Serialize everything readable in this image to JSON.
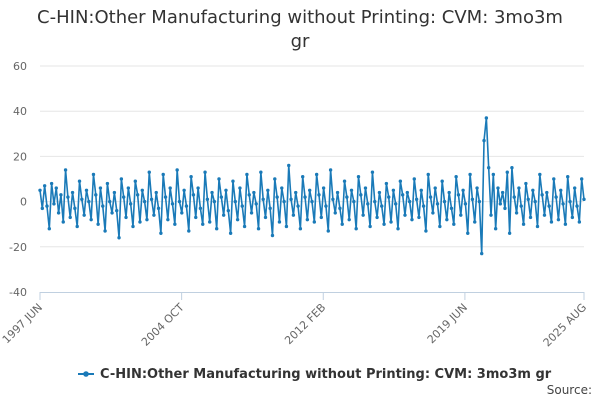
{
  "chart_data": {
    "type": "line",
    "title": "C-HIN:Other Manufacturing without Printing: CVM: 3mo3m gr",
    "xlabel": "",
    "ylabel": "",
    "ylim": [
      -40,
      60
    ],
    "yticks": [
      60,
      40,
      20,
      0,
      -20,
      -40
    ],
    "x_range": [
      "1997-06",
      "2025-08"
    ],
    "xticks": [
      {
        "label": "1997 JUN",
        "date": "1997-06"
      },
      {
        "label": "2004 OCT",
        "date": "2004-10"
      },
      {
        "label": "2012 FEB",
        "date": "2012-02"
      },
      {
        "label": "2019 JUN",
        "date": "2019-06"
      },
      {
        "label": "2025 AUG",
        "date": "2025-08"
      }
    ],
    "series": [
      {
        "name": "C-HIN:Other Manufacturing without Printing: CVM: 3mo3m gr",
        "color": "#1a7ab8",
        "values": [
          5,
          -3,
          7,
          -2,
          -12,
          8,
          -1,
          6,
          -5,
          3,
          -9,
          14,
          2,
          -7,
          4,
          -3,
          -11,
          9,
          1,
          -6,
          5,
          0,
          -8,
          12,
          3,
          -10,
          6,
          -2,
          -13,
          8,
          0,
          -5,
          4,
          -4,
          -16,
          10,
          2,
          -7,
          6,
          -1,
          -11,
          9,
          3,
          -9,
          5,
          0,
          -8,
          13,
          1,
          -6,
          4,
          -3,
          -14,
          12,
          2,
          -8,
          6,
          -1,
          -10,
          14,
          0,
          -5,
          5,
          -2,
          -13,
          11,
          3,
          -7,
          6,
          -3,
          -10,
          13,
          1,
          -9,
          4,
          0,
          -12,
          10,
          2,
          -6,
          5,
          -4,
          -14,
          9,
          0,
          -8,
          6,
          -2,
          -11,
          12,
          3,
          -5,
          4,
          -1,
          -12,
          13,
          1,
          -7,
          5,
          -3,
          -15,
          10,
          2,
          -9,
          6,
          0,
          -11,
          16,
          1,
          -6,
          4,
          -2,
          -12,
          11,
          2,
          -8,
          5,
          0,
          -9,
          12,
          3,
          -7,
          6,
          -2,
          -13,
          14,
          1,
          -5,
          4,
          -3,
          -10,
          9,
          2,
          -8,
          5,
          0,
          -12,
          11,
          3,
          -6,
          6,
          -1,
          -11,
          13,
          0,
          -7,
          4,
          -2,
          -10,
          8,
          2,
          -9,
          5,
          -1,
          -12,
          9,
          3,
          -6,
          4,
          0,
          -8,
          10,
          1,
          -7,
          5,
          -2,
          -13,
          12,
          2,
          -5,
          6,
          -1,
          -11,
          9,
          0,
          -8,
          4,
          -3,
          -10,
          11,
          3,
          -6,
          5,
          -1,
          -14,
          12,
          1,
          -9,
          6,
          0,
          -23,
          27,
          37,
          15,
          -6,
          12,
          -12,
          6,
          -1,
          4,
          -3,
          13,
          -14,
          15,
          2,
          -5,
          6,
          -2,
          -10,
          8,
          1,
          -7,
          5,
          0,
          -11,
          12,
          3,
          -6,
          4,
          -2,
          -9,
          10,
          2,
          -8,
          5,
          -1,
          -10,
          11,
          0,
          -7,
          6,
          -2,
          -9,
          10,
          1
        ]
      }
    ]
  },
  "legend": {
    "label": "C-HIN:Other Manufacturing without Printing: CVM: 3mo3m gr"
  },
  "source": {
    "label": "Source:"
  }
}
